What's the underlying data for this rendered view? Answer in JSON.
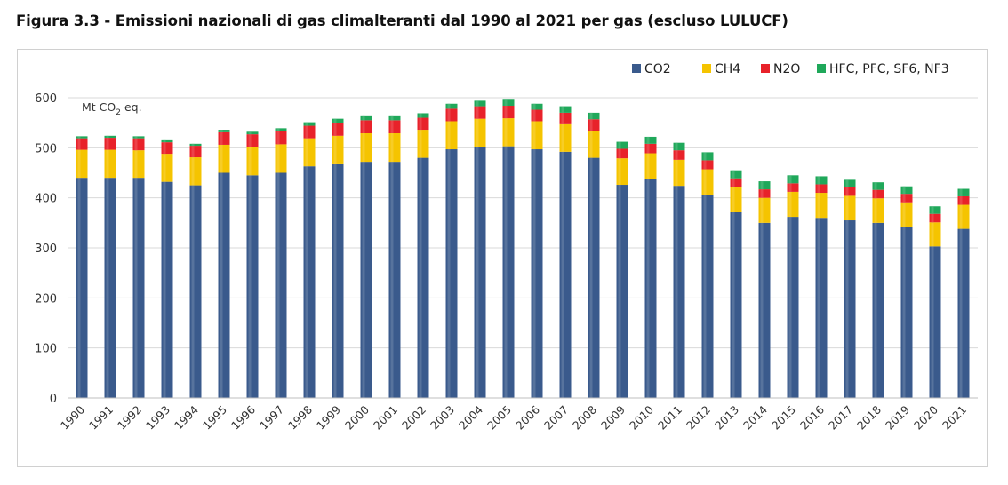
{
  "figure_title": "Figura 3.3 - Emissioni nazionali di gas climalteranti dal 1990 al 2021 per gas (escluso LULUCF)",
  "chart_data": {
    "type": "bar",
    "stacked": true,
    "unit_label_main": "Mt CO",
    "unit_label_sub": "2",
    "unit_label_tail": " eq.",
    "xlabel": "",
    "ylabel": "",
    "ylim": [
      0,
      600
    ],
    "yticks": [
      0,
      100,
      200,
      300,
      400,
      500,
      600
    ],
    "grid": true,
    "legend_position": "top-right",
    "categories": [
      "1990",
      "1991",
      "1992",
      "1993",
      "1994",
      "1995",
      "1996",
      "1997",
      "1998",
      "1999",
      "2000",
      "2001",
      "2002",
      "2003",
      "2004",
      "2005",
      "2006",
      "2007",
      "2008",
      "2009",
      "2010",
      "2011",
      "2012",
      "2013",
      "2014",
      "2015",
      "2016",
      "2017",
      "2018",
      "2019",
      "2020",
      "2021"
    ],
    "series": [
      {
        "name": "CO2",
        "color": "#3a5a8c",
        "values": [
          440,
          440,
          440,
          432,
          425,
          450,
          445,
          450,
          463,
          467,
          472,
          472,
          480,
          497,
          502,
          503,
          497,
          492,
          480,
          426,
          437,
          424,
          405,
          371,
          350,
          362,
          360,
          355,
          350,
          342,
          303,
          338
        ]
      },
      {
        "name": "CH4",
        "color": "#f5c400",
        "values": [
          56,
          56,
          55,
          56,
          56,
          56,
          57,
          57,
          56,
          57,
          57,
          57,
          56,
          56,
          56,
          56,
          56,
          55,
          54,
          53,
          52,
          52,
          52,
          51,
          50,
          50,
          50,
          49,
          49,
          49,
          48,
          48
        ]
      },
      {
        "name": "N2O",
        "color": "#e8222a",
        "values": [
          23,
          24,
          24,
          23,
          23,
          25,
          25,
          26,
          25,
          26,
          26,
          26,
          24,
          25,
          25,
          25,
          23,
          23,
          23,
          19,
          19,
          19,
          18,
          17,
          17,
          17,
          17,
          17,
          17,
          17,
          17,
          17
        ]
      },
      {
        "name": "HFC, PFC, SF6, NF3",
        "color": "#1fa85a",
        "values": [
          4,
          4,
          4,
          4,
          4,
          5,
          5,
          6,
          7,
          8,
          8,
          8,
          9,
          10,
          11,
          12,
          12,
          13,
          13,
          14,
          14,
          15,
          16,
          16,
          16,
          16,
          16,
          15,
          15,
          15,
          15,
          15
        ]
      }
    ]
  }
}
